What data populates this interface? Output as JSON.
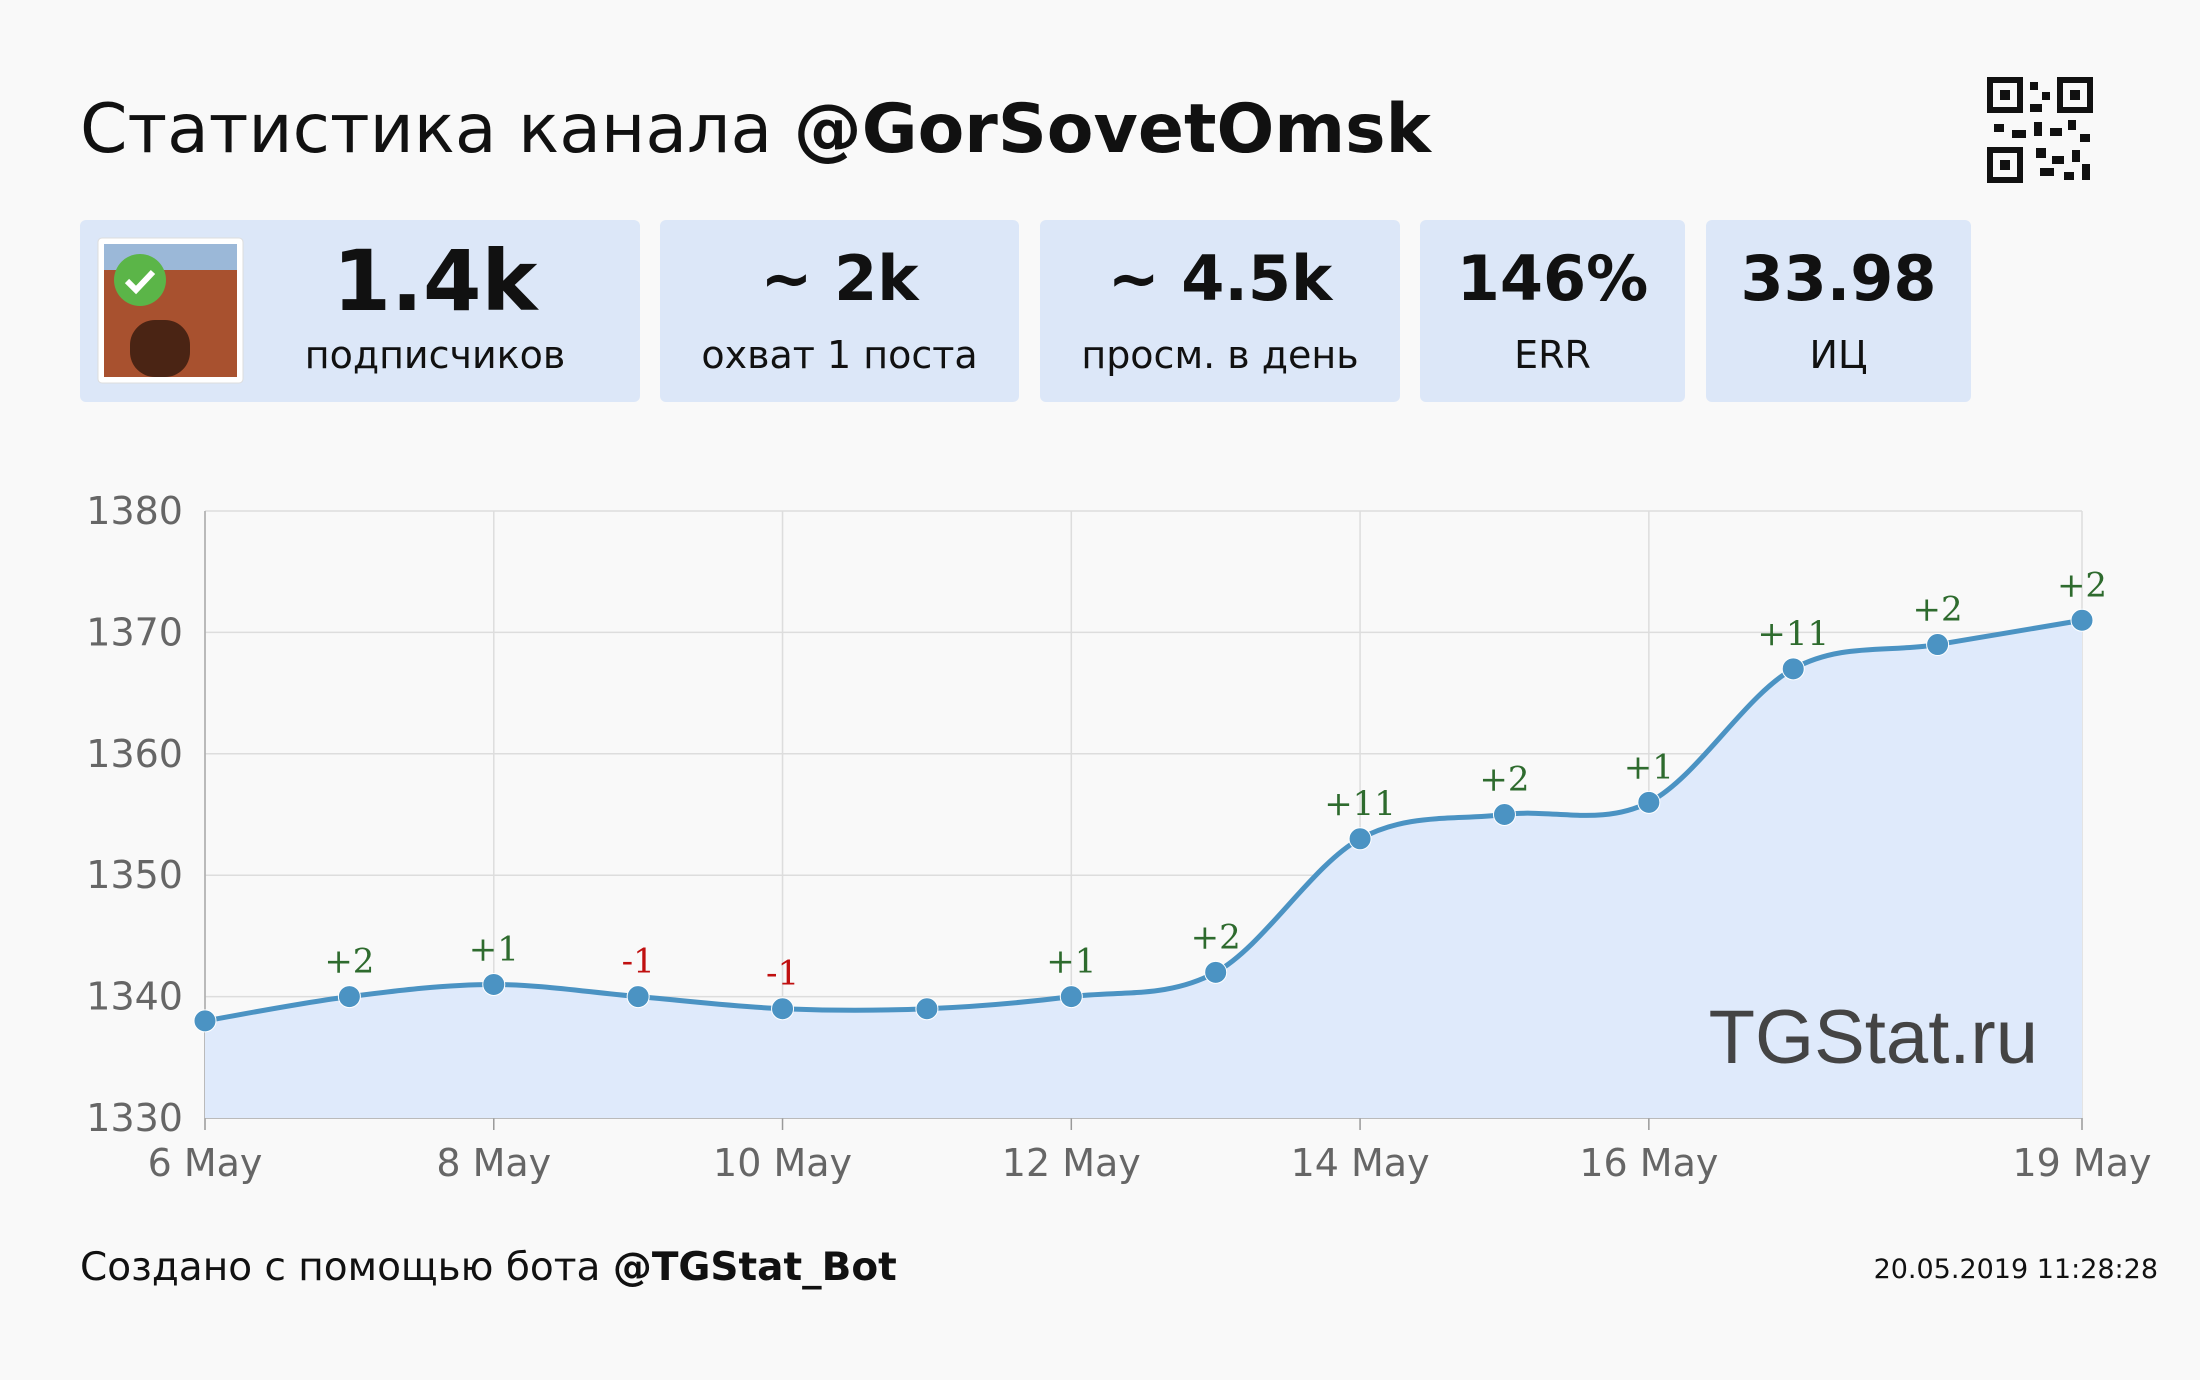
{
  "header": {
    "title": "Статистика канала",
    "channel": "@GorSovetOmsk"
  },
  "stats": [
    {
      "value": "1.4k",
      "label": "подписчиков"
    },
    {
      "value": "~ 2k",
      "label": "охват 1 поста"
    },
    {
      "value": "~ 4.5k",
      "label": "просм. в день"
    },
    {
      "value": "146%",
      "label": "ERR"
    },
    {
      "value": "33.98",
      "label": "ИЦ"
    }
  ],
  "chart_data": {
    "type": "line",
    "categories": [
      "6 May",
      null,
      "8 May",
      null,
      "10 May",
      null,
      "12 May",
      null,
      "14 May",
      null,
      "16 May",
      null,
      null,
      "19 May"
    ],
    "values": [
      1338,
      1340,
      1341,
      1340,
      1339,
      1339,
      1340,
      1342,
      1353,
      1355,
      1356,
      1367,
      1369,
      1371
    ],
    "change_labels": [
      null,
      "+2",
      "+1",
      "-1",
      "-1",
      null,
      "+1",
      "+2",
      "+11",
      "+2",
      "+1",
      "+11",
      "+2",
      "+2"
    ],
    "color": "#4b93c3",
    "area_color": "#dfeafb",
    "ylim": [
      1330,
      1380
    ],
    "yticks": [
      1330,
      1340,
      1350,
      1360,
      1370,
      1380
    ],
    "grid": true,
    "watermark": "TGStat.ru"
  },
  "footer": {
    "text": "Создано с помощью бота",
    "bot": "@TGStat_Bot",
    "timestamp": "20.05.2019 11:28:28"
  }
}
